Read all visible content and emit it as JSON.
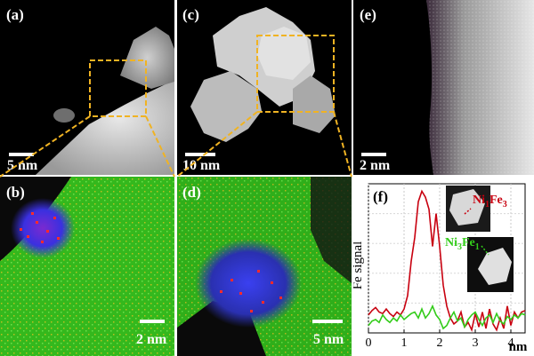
{
  "panels": {
    "a": {
      "label": "(a)",
      "scale": "5 nm"
    },
    "b": {
      "label": "(b)",
      "scale": "2 nm"
    },
    "c": {
      "label": "(c)",
      "scale": "10 nm"
    },
    "d": {
      "label": "(d)",
      "scale": "5 nm"
    },
    "e": {
      "label": "(e)",
      "scale": "2 nm"
    },
    "f": {
      "label": "(f)"
    }
  },
  "colors": {
    "zoom_box": "#f0b323",
    "map_green": "#35c21d",
    "map_blue": "#2a3cff",
    "map_red": "#ff2a2a",
    "stem_bright": "#e6e6e6"
  },
  "chart_data": {
    "type": "line",
    "title": "",
    "xlabel": "nm",
    "ylabel": "Fe signal",
    "xlim": [
      0,
      4.4
    ],
    "xticks": [
      0,
      1,
      2,
      3,
      4
    ],
    "grid": true,
    "series": [
      {
        "name": "Ni1Fe3",
        "label_main": "Ni",
        "label_sub1": "1",
        "label_mid": "Fe",
        "label_sub2": "3",
        "color": "#c8000f",
        "x": [
          0,
          0.1,
          0.2,
          0.3,
          0.4,
          0.5,
          0.6,
          0.7,
          0.8,
          0.9,
          1.0,
          1.1,
          1.2,
          1.3,
          1.4,
          1.5,
          1.6,
          1.7,
          1.8,
          1.9,
          2.0,
          2.1,
          2.2,
          2.3,
          2.4,
          2.5,
          2.6,
          2.7,
          2.8,
          2.9,
          3.0,
          3.1,
          3.2,
          3.3,
          3.4,
          3.5,
          3.6,
          3.7,
          3.8,
          3.9,
          4.0,
          4.1,
          4.2,
          4.3,
          4.4
        ],
        "values": [
          0.12,
          0.15,
          0.17,
          0.14,
          0.13,
          0.16,
          0.13,
          0.11,
          0.14,
          0.12,
          0.16,
          0.25,
          0.48,
          0.64,
          0.88,
          0.95,
          0.91,
          0.83,
          0.58,
          0.8,
          0.58,
          0.32,
          0.18,
          0.1,
          0.06,
          0.08,
          0.14,
          0.04,
          0.07,
          0.02,
          0.13,
          0.04,
          0.14,
          0.03,
          0.16,
          0.06,
          0.02,
          0.1,
          0.03,
          0.18,
          0.05,
          0.14,
          0.1,
          0.14,
          0.15
        ]
      },
      {
        "name": "Ni3Fe1",
        "label_main": "Ni",
        "label_sub1": "3",
        "label_mid": "Fe",
        "label_sub2": "1",
        "color": "#33cc1a",
        "x": [
          0,
          0.1,
          0.2,
          0.3,
          0.4,
          0.5,
          0.6,
          0.7,
          0.8,
          0.9,
          1.0,
          1.1,
          1.2,
          1.3,
          1.4,
          1.5,
          1.6,
          1.7,
          1.8,
          1.9,
          2.0,
          2.1,
          2.2,
          2.3,
          2.4,
          2.5,
          2.6,
          2.7,
          2.8,
          2.9,
          3.0,
          3.1,
          3.2,
          3.3,
          3.4,
          3.5,
          3.6,
          3.7,
          3.8,
          3.9,
          4.0,
          4.1,
          4.2,
          4.3,
          4.4
        ],
        "values": [
          0.05,
          0.08,
          0.09,
          0.07,
          0.12,
          0.09,
          0.07,
          0.1,
          0.08,
          0.12,
          0.09,
          0.11,
          0.13,
          0.14,
          0.1,
          0.16,
          0.1,
          0.13,
          0.18,
          0.12,
          0.09,
          0.03,
          0.05,
          0.1,
          0.14,
          0.08,
          0.1,
          0.04,
          0.09,
          0.12,
          0.14,
          0.09,
          0.05,
          0.1,
          0.12,
          0.07,
          0.13,
          0.08,
          0.06,
          0.11,
          0.09,
          0.12,
          0.1,
          0.13,
          0.12
        ]
      }
    ]
  }
}
